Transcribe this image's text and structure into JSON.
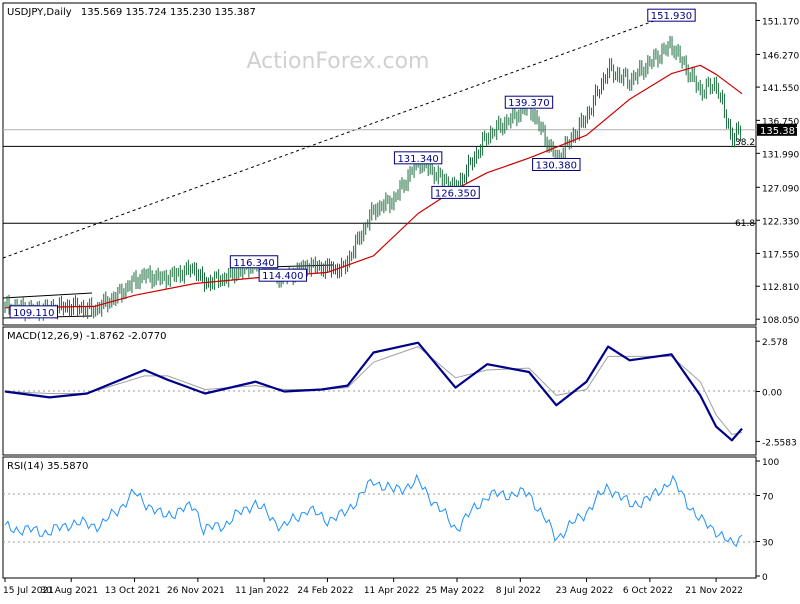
{
  "colors": {
    "candle": "#1a6b3c",
    "ma": "#cc0000",
    "macd": "#00008b",
    "signal": "#a0a0a0",
    "rsi": "#1e90ff",
    "axis": "#000000",
    "label_border": "#000080",
    "last_price_box": "#000000"
  },
  "chart_data": [
    {
      "type": "candlestick",
      "title": "USDJPY,Daily",
      "ohlc_header": "135.569 135.724 135.230 135.387",
      "watermark": "ActionForex.com",
      "x_ticks": [
        "15 Jul 2021",
        "30 Aug 2021",
        "13 Oct 2021",
        "26 Nov 2021",
        "11 Jan 2022",
        "24 Feb 2022",
        "11 Apr 2022",
        "25 May 2022",
        "8 Jul 2022",
        "23 Aug 2022",
        "6 Oct 2022",
        "21 Nov 2022"
      ],
      "y_ticks": [
        "151.170",
        "146.270",
        "141.550",
        "136.750",
        "131.990",
        "127.090",
        "122.330",
        "117.550",
        "112.810",
        "108.050"
      ],
      "ylim": [
        107.5,
        153.4
      ],
      "last_price": "135.387",
      "fib_labels": {
        "fib_38": "38.2",
        "fib_61": "61.8"
      },
      "fib_levels": [
        133.0,
        121.9
      ],
      "annotations": [
        {
          "label": "151.930",
          "x": "2022-10-21",
          "y": 151.93
        },
        {
          "label": "139.370",
          "x": "2022-07-14",
          "y": 139.37
        },
        {
          "label": "131.340",
          "x": "2022-04-28",
          "y": 131.34
        },
        {
          "label": "130.380",
          "x": "2022-08-02",
          "y": 130.38
        },
        {
          "label": "126.350",
          "x": "2022-05-24",
          "y": 126.35
        },
        {
          "label": "116.340",
          "x": "2022-01-04",
          "y": 116.34
        },
        {
          "label": "114.400",
          "x": "2022-01-24",
          "y": 114.4
        },
        {
          "label": "109.110",
          "x": "2021-08-04",
          "y": 109.11
        }
      ],
      "close_series": [
        {
          "x": "2021-07-15",
          "y": 109.9
        },
        {
          "x": "2021-08-04",
          "y": 109.3
        },
        {
          "x": "2021-08-30",
          "y": 109.9
        },
        {
          "x": "2021-09-15",
          "y": 109.4
        },
        {
          "x": "2021-09-30",
          "y": 111.3
        },
        {
          "x": "2021-10-13",
          "y": 113.6
        },
        {
          "x": "2021-10-20",
          "y": 114.4
        },
        {
          "x": "2021-11-01",
          "y": 113.9
        },
        {
          "x": "2021-11-24",
          "y": 115.4
        },
        {
          "x": "2021-11-30",
          "y": 113.3
        },
        {
          "x": "2021-12-15",
          "y": 114.0
        },
        {
          "x": "2022-01-04",
          "y": 116.1
        },
        {
          "x": "2022-01-24",
          "y": 113.9
        },
        {
          "x": "2022-02-10",
          "y": 115.8
        },
        {
          "x": "2022-02-24",
          "y": 115.4
        },
        {
          "x": "2022-03-07",
          "y": 115.3
        },
        {
          "x": "2022-03-28",
          "y": 123.8
        },
        {
          "x": "2022-04-11",
          "y": 125.3
        },
        {
          "x": "2022-04-28",
          "y": 130.9
        },
        {
          "x": "2022-05-24",
          "y": 126.9
        },
        {
          "x": "2022-06-15",
          "y": 134.5
        },
        {
          "x": "2022-07-14",
          "y": 138.9
        },
        {
          "x": "2022-08-02",
          "y": 131.0
        },
        {
          "x": "2022-08-23",
          "y": 137.3
        },
        {
          "x": "2022-09-07",
          "y": 144.1
        },
        {
          "x": "2022-09-22",
          "y": 142.4
        },
        {
          "x": "2022-10-06",
          "y": 145.1
        },
        {
          "x": "2022-10-21",
          "y": 147.7
        },
        {
          "x": "2022-11-10",
          "y": 141.0
        },
        {
          "x": "2022-11-21",
          "y": 142.0
        },
        {
          "x": "2022-12-02",
          "y": 134.2
        },
        {
          "x": "2022-12-09",
          "y": 135.4
        }
      ],
      "ma_series": [
        {
          "x": "2021-07-15",
          "y": 109.7
        },
        {
          "x": "2021-09-15",
          "y": 109.9
        },
        {
          "x": "2021-10-13",
          "y": 111.5
        },
        {
          "x": "2021-11-24",
          "y": 113.2
        },
        {
          "x": "2022-01-04",
          "y": 114.0
        },
        {
          "x": "2022-02-24",
          "y": 114.8
        },
        {
          "x": "2022-03-28",
          "y": 117.2
        },
        {
          "x": "2022-04-28",
          "y": 123.3
        },
        {
          "x": "2022-05-24",
          "y": 126.8
        },
        {
          "x": "2022-06-15",
          "y": 129.2
        },
        {
          "x": "2022-07-14",
          "y": 131.3
        },
        {
          "x": "2022-08-23",
          "y": 134.6
        },
        {
          "x": "2022-09-22",
          "y": 139.8
        },
        {
          "x": "2022-10-21",
          "y": 143.5
        },
        {
          "x": "2022-11-10",
          "y": 144.7
        },
        {
          "x": "2022-11-21",
          "y": 143.4
        },
        {
          "x": "2022-12-09",
          "y": 140.6
        }
      ]
    },
    {
      "type": "line",
      "title": "MACD(12,26,9) -1.8762 -2.0770",
      "y_ticks": [
        "2.578",
        "0.00",
        "-2.5583"
      ],
      "ylim": [
        -3.1,
        3.1
      ],
      "series": [
        {
          "values": [
            {
              "x": "2021-07-15",
              "y": 0.0
            },
            {
              "x": "2021-08-15",
              "y": -0.3
            },
            {
              "x": "2021-09-10",
              "y": -0.1
            },
            {
              "x": "2021-10-20",
              "y": 1.1
            },
            {
              "x": "2021-11-05",
              "y": 0.6
            },
            {
              "x": "2021-12-01",
              "y": -0.1
            },
            {
              "x": "2022-01-05",
              "y": 0.5
            },
            {
              "x": "2022-01-25",
              "y": 0.0
            },
            {
              "x": "2022-02-20",
              "y": 0.1
            },
            {
              "x": "2022-03-10",
              "y": 0.3
            },
            {
              "x": "2022-03-28",
              "y": 2.0
            },
            {
              "x": "2022-04-28",
              "y": 2.5
            },
            {
              "x": "2022-05-24",
              "y": 0.2
            },
            {
              "x": "2022-06-15",
              "y": 1.4
            },
            {
              "x": "2022-07-14",
              "y": 1.0
            },
            {
              "x": "2022-08-02",
              "y": -0.7
            },
            {
              "x": "2022-08-23",
              "y": 0.5
            },
            {
              "x": "2022-09-07",
              "y": 2.3
            },
            {
              "x": "2022-09-22",
              "y": 1.6
            },
            {
              "x": "2022-10-21",
              "y": 1.9
            },
            {
              "x": "2022-11-10",
              "y": -0.2
            },
            {
              "x": "2022-11-21",
              "y": -1.8
            },
            {
              "x": "2022-12-02",
              "y": -2.5
            },
            {
              "x": "2022-12-09",
              "y": -1.9
            }
          ]
        },
        {
          "values": [
            {
              "x": "2021-07-15",
              "y": 0.0
            },
            {
              "x": "2021-08-15",
              "y": -0.1
            },
            {
              "x": "2021-09-10",
              "y": -0.1
            },
            {
              "x": "2021-10-20",
              "y": 0.8
            },
            {
              "x": "2021-11-05",
              "y": 0.8
            },
            {
              "x": "2021-12-01",
              "y": 0.1
            },
            {
              "x": "2022-01-05",
              "y": 0.3
            },
            {
              "x": "2022-01-25",
              "y": 0.1
            },
            {
              "x": "2022-02-20",
              "y": 0.1
            },
            {
              "x": "2022-03-10",
              "y": 0.2
            },
            {
              "x": "2022-03-28",
              "y": 1.5
            },
            {
              "x": "2022-04-28",
              "y": 2.3
            },
            {
              "x": "2022-05-24",
              "y": 0.7
            },
            {
              "x": "2022-06-15",
              "y": 1.1
            },
            {
              "x": "2022-07-14",
              "y": 1.2
            },
            {
              "x": "2022-08-02",
              "y": -0.2
            },
            {
              "x": "2022-08-23",
              "y": 0.1
            },
            {
              "x": "2022-09-07",
              "y": 1.8
            },
            {
              "x": "2022-09-22",
              "y": 1.8
            },
            {
              "x": "2022-10-21",
              "y": 1.8
            },
            {
              "x": "2022-11-10",
              "y": 0.5
            },
            {
              "x": "2022-11-21",
              "y": -1.2
            },
            {
              "x": "2022-12-02",
              "y": -2.2
            },
            {
              "x": "2022-12-09",
              "y": -2.1
            }
          ]
        }
      ]
    },
    {
      "type": "line",
      "title": "RSI(14) 35.5870",
      "y_ticks": [
        "100",
        "70",
        "30",
        "0"
      ],
      "ylim": [
        0,
        100
      ],
      "series": [
        {
          "values": [
            {
              "x": "2021-07-15",
              "y": 42
            },
            {
              "x": "2021-08-15",
              "y": 38
            },
            {
              "x": "2021-08-30",
              "y": 46
            },
            {
              "x": "2021-09-20",
              "y": 44
            },
            {
              "x": "2021-10-13",
              "y": 72
            },
            {
              "x": "2021-11-01",
              "y": 52
            },
            {
              "x": "2021-11-24",
              "y": 61
            },
            {
              "x": "2021-11-30",
              "y": 40
            },
            {
              "x": "2021-12-15",
              "y": 45
            },
            {
              "x": "2022-01-04",
              "y": 64
            },
            {
              "x": "2022-01-24",
              "y": 42
            },
            {
              "x": "2022-02-10",
              "y": 58
            },
            {
              "x": "2022-02-24",
              "y": 49
            },
            {
              "x": "2022-03-07",
              "y": 53
            },
            {
              "x": "2022-03-28",
              "y": 83
            },
            {
              "x": "2022-04-11",
              "y": 74
            },
            {
              "x": "2022-04-28",
              "y": 82
            },
            {
              "x": "2022-05-24",
              "y": 41
            },
            {
              "x": "2022-06-15",
              "y": 70
            },
            {
              "x": "2022-07-14",
              "y": 72
            },
            {
              "x": "2022-08-02",
              "y": 33
            },
            {
              "x": "2022-08-23",
              "y": 56
            },
            {
              "x": "2022-09-07",
              "y": 78
            },
            {
              "x": "2022-09-22",
              "y": 62
            },
            {
              "x": "2022-10-06",
              "y": 67
            },
            {
              "x": "2022-10-21",
              "y": 84
            },
            {
              "x": "2022-11-10",
              "y": 48
            },
            {
              "x": "2022-11-21",
              "y": 40
            },
            {
              "x": "2022-12-02",
              "y": 26
            },
            {
              "x": "2022-12-09",
              "y": 36
            }
          ]
        }
      ]
    }
  ]
}
